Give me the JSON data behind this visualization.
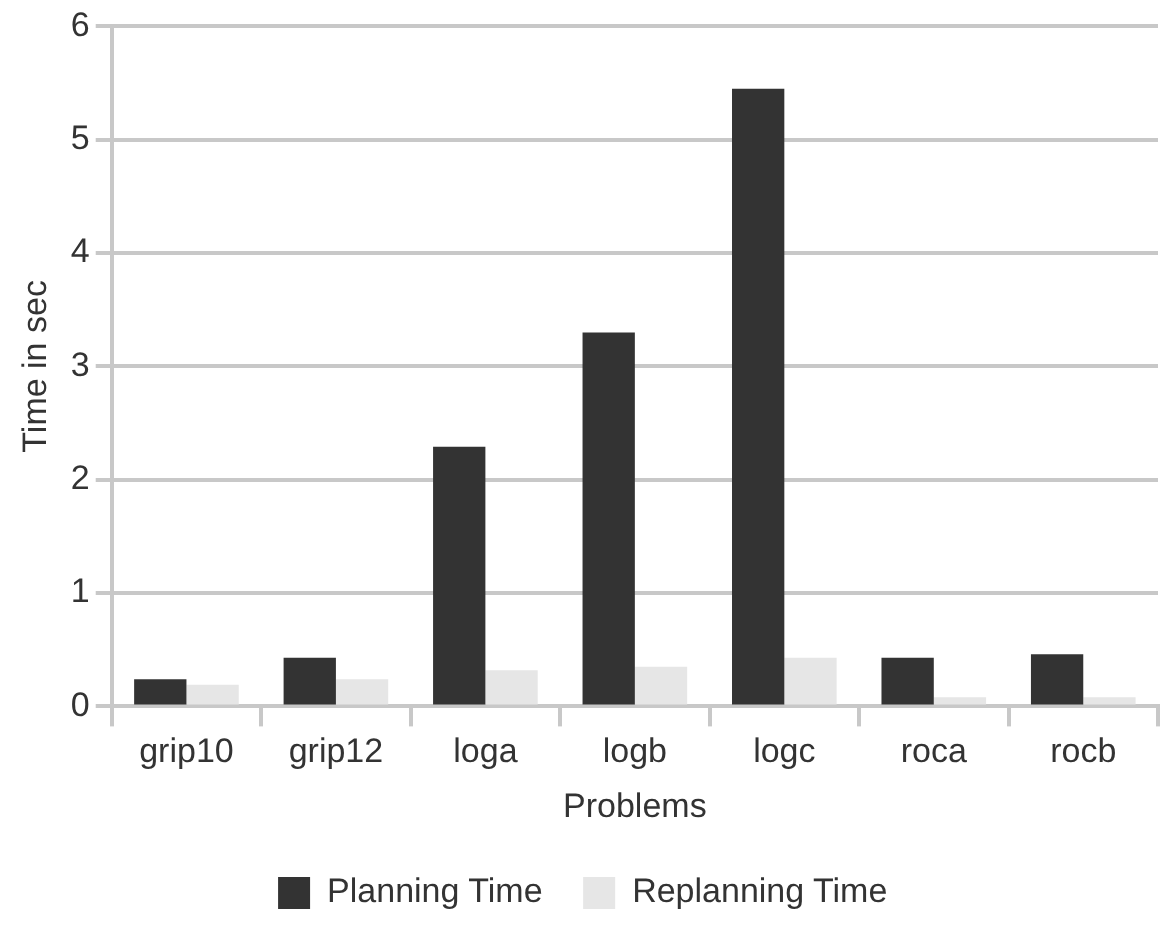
{
  "chart_data": {
    "type": "bar",
    "xlabel": "Problems",
    "ylabel": "Time in sec",
    "categories": [
      "grip10",
      "grip12",
      "loga",
      "logb",
      "logc",
      "roca",
      "rocb"
    ],
    "series": [
      {
        "name": "Planning Time",
        "color": "#333333",
        "values": [
          0.24,
          0.43,
          2.29,
          3.3,
          5.45,
          0.43,
          0.46
        ]
      },
      {
        "name": "Replanning Time",
        "color": "#e6e6e6",
        "values": [
          0.19,
          0.24,
          0.32,
          0.35,
          0.43,
          0.08,
          0.08
        ]
      }
    ],
    "ylim": [
      0,
      6
    ],
    "yticks": [
      0,
      1,
      2,
      3,
      4,
      5,
      6
    ],
    "grid": "y",
    "legend": "bottom"
  }
}
